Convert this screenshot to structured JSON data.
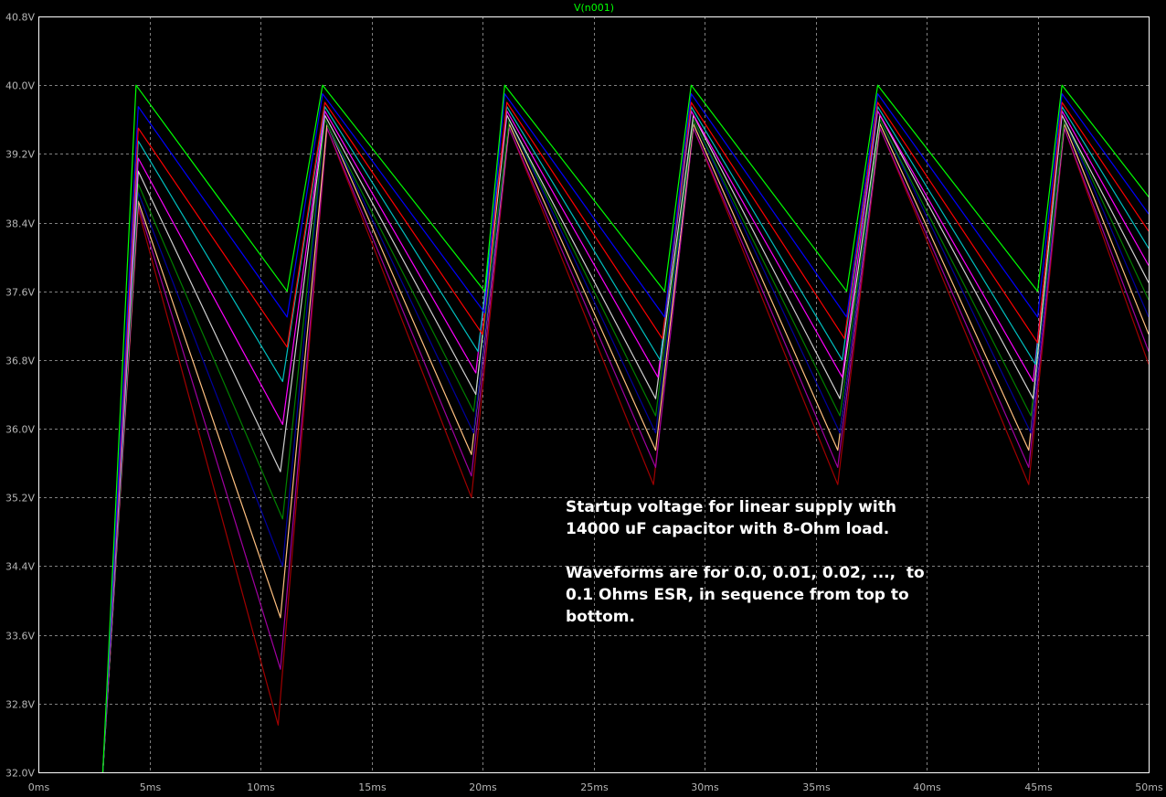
{
  "chart_data": {
    "type": "line",
    "title": "V(n001)",
    "xlabel": "",
    "ylabel": "",
    "x_unit": "ms",
    "y_unit": "V",
    "xlim": [
      0,
      50
    ],
    "ylim": [
      32.0,
      40.8
    ],
    "x_ticks": [
      "0ms",
      "5ms",
      "10ms",
      "15ms",
      "20ms",
      "25ms",
      "30ms",
      "35ms",
      "40ms",
      "45ms",
      "50ms"
    ],
    "y_ticks": [
      "32.0V",
      "32.8V",
      "33.6V",
      "34.4V",
      "35.2V",
      "36.0V",
      "36.8V",
      "37.6V",
      "38.4V",
      "39.2V",
      "40.0V",
      "40.8V"
    ],
    "grid": true,
    "annotation": "Startup voltage for linear supply with\n14000 uF capacitor with 8-Ohm load.\n\nWaveforms are for 0.0, 0.01, 0.02, ...,  to\n0.1 Ohms ESR, in sequence from top to\nbottom.",
    "series": [
      {
        "color": "#00ff00",
        "values": [
          [
            2.9,
            32.0
          ],
          [
            4.4,
            40.0
          ],
          [
            11.2,
            37.6
          ],
          [
            12.8,
            40.0
          ],
          [
            20.1,
            37.6
          ],
          [
            21.0,
            40.0
          ],
          [
            28.2,
            37.6
          ],
          [
            29.4,
            40.0
          ],
          [
            36.4,
            37.6
          ],
          [
            37.8,
            40.0
          ],
          [
            45.0,
            37.6
          ],
          [
            46.1,
            40.0
          ],
          [
            50.0,
            38.7
          ]
        ]
      },
      {
        "color": "#0000ff",
        "values": [
          [
            2.9,
            32.0
          ],
          [
            4.5,
            39.75
          ],
          [
            11.2,
            37.3
          ],
          [
            12.8,
            39.9
          ],
          [
            20.1,
            37.35
          ],
          [
            21.0,
            39.9
          ],
          [
            28.2,
            37.3
          ],
          [
            29.4,
            39.9
          ],
          [
            36.4,
            37.3
          ],
          [
            37.8,
            39.9
          ],
          [
            45.0,
            37.3
          ],
          [
            46.1,
            39.9
          ],
          [
            50.0,
            38.5
          ]
        ]
      },
      {
        "color": "#ff0000",
        "values": [
          [
            2.9,
            32.0
          ],
          [
            4.5,
            39.5
          ],
          [
            11.2,
            36.95
          ],
          [
            12.9,
            39.8
          ],
          [
            20.0,
            37.1
          ],
          [
            21.1,
            39.8
          ],
          [
            28.1,
            37.05
          ],
          [
            29.4,
            39.8
          ],
          [
            36.3,
            37.05
          ],
          [
            37.8,
            39.8
          ],
          [
            45.0,
            37.0
          ],
          [
            46.1,
            39.8
          ],
          [
            50.0,
            38.3
          ]
        ]
      },
      {
        "color": "#00c0c0",
        "values": [
          [
            2.9,
            32.0
          ],
          [
            4.5,
            39.35
          ],
          [
            11.0,
            36.55
          ],
          [
            12.9,
            39.75
          ],
          [
            19.8,
            36.9
          ],
          [
            21.1,
            39.75
          ],
          [
            28.0,
            36.8
          ],
          [
            29.4,
            39.75
          ],
          [
            36.2,
            36.8
          ],
          [
            37.8,
            39.75
          ],
          [
            44.9,
            36.75
          ],
          [
            46.1,
            39.75
          ],
          [
            50.0,
            38.1
          ]
        ]
      },
      {
        "color": "#ff00ff",
        "values": [
          [
            2.9,
            32.0
          ],
          [
            4.5,
            39.15
          ],
          [
            11.0,
            36.05
          ],
          [
            12.9,
            39.7
          ],
          [
            19.7,
            36.65
          ],
          [
            21.1,
            39.7
          ],
          [
            27.9,
            36.6
          ],
          [
            29.4,
            39.7
          ],
          [
            36.2,
            36.6
          ],
          [
            37.8,
            39.7
          ],
          [
            44.8,
            36.55
          ],
          [
            46.1,
            39.7
          ],
          [
            50.0,
            37.9
          ]
        ]
      },
      {
        "color": "#d0d0d0",
        "values": [
          [
            2.9,
            32.0
          ],
          [
            4.5,
            39.0
          ],
          [
            10.9,
            35.5
          ],
          [
            12.9,
            39.65
          ],
          [
            19.7,
            36.4
          ],
          [
            21.1,
            39.65
          ],
          [
            27.8,
            36.35
          ],
          [
            29.5,
            39.65
          ],
          [
            36.1,
            36.35
          ],
          [
            37.9,
            39.65
          ],
          [
            44.8,
            36.35
          ],
          [
            46.1,
            39.65
          ],
          [
            50.0,
            37.7
          ]
        ]
      },
      {
        "color": "#008000",
        "values": [
          [
            2.9,
            32.0
          ],
          [
            4.5,
            38.85
          ],
          [
            11.0,
            34.95
          ],
          [
            12.9,
            39.6
          ],
          [
            19.6,
            36.2
          ],
          [
            21.2,
            39.6
          ],
          [
            27.8,
            36.15
          ],
          [
            29.5,
            39.6
          ],
          [
            36.1,
            36.15
          ],
          [
            37.9,
            39.6
          ],
          [
            44.7,
            36.15
          ],
          [
            46.2,
            39.6
          ],
          [
            50.0,
            37.5
          ]
        ]
      },
      {
        "color": "#0000a0",
        "values": [
          [
            2.9,
            32.0
          ],
          [
            4.5,
            38.75
          ],
          [
            11.0,
            34.4
          ],
          [
            12.9,
            39.6
          ],
          [
            19.6,
            35.95
          ],
          [
            21.2,
            39.6
          ],
          [
            27.8,
            35.95
          ],
          [
            29.5,
            39.6
          ],
          [
            36.1,
            35.95
          ],
          [
            37.9,
            39.6
          ],
          [
            44.7,
            35.95
          ],
          [
            46.2,
            39.6
          ],
          [
            50.0,
            37.3
          ]
        ]
      },
      {
        "color": "#ffc080",
        "values": [
          [
            2.9,
            32.0
          ],
          [
            4.5,
            38.65
          ],
          [
            10.9,
            33.8
          ],
          [
            13.0,
            39.55
          ],
          [
            19.5,
            35.7
          ],
          [
            21.2,
            39.55
          ],
          [
            27.8,
            35.75
          ],
          [
            29.5,
            39.55
          ],
          [
            36.0,
            35.75
          ],
          [
            37.9,
            39.55
          ],
          [
            44.6,
            35.75
          ],
          [
            46.2,
            39.55
          ],
          [
            50.0,
            37.1
          ]
        ]
      },
      {
        "color": "#a000a0",
        "values": [
          [
            2.9,
            32.0
          ],
          [
            4.5,
            38.6
          ],
          [
            10.9,
            33.2
          ],
          [
            13.0,
            39.5
          ],
          [
            19.5,
            35.45
          ],
          [
            21.2,
            39.5
          ],
          [
            27.8,
            35.55
          ],
          [
            29.5,
            39.5
          ],
          [
            36.0,
            35.55
          ],
          [
            37.9,
            39.5
          ],
          [
            44.6,
            35.55
          ],
          [
            46.2,
            39.5
          ],
          [
            50.0,
            36.9
          ]
        ]
      },
      {
        "color": "#a00000",
        "values": [
          [
            2.9,
            32.0
          ],
          [
            4.5,
            38.55
          ],
          [
            10.8,
            32.55
          ],
          [
            13.0,
            39.5
          ],
          [
            19.5,
            35.2
          ],
          [
            21.2,
            39.5
          ],
          [
            27.7,
            35.35
          ],
          [
            29.5,
            39.5
          ],
          [
            36.0,
            35.35
          ],
          [
            37.9,
            39.5
          ],
          [
            44.6,
            35.35
          ],
          [
            46.2,
            39.5
          ],
          [
            50.0,
            36.75
          ]
        ]
      }
    ]
  }
}
